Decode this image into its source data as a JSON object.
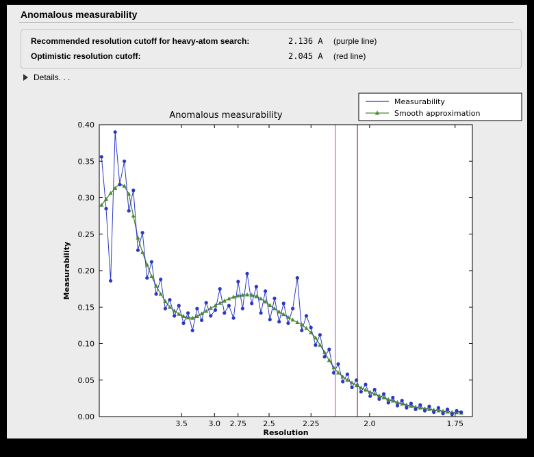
{
  "header": {
    "title": "Anomalous measurability"
  },
  "info": {
    "rows": [
      {
        "label": "Recommended resolution cutoff for heavy-atom search:",
        "value": "2.136 A",
        "note": "(purple line)"
      },
      {
        "label": "Optimistic resolution cutoff:",
        "value": "2.045 A",
        "note": "(red line)"
      }
    ]
  },
  "details": {
    "label": "Details. . ."
  },
  "colors": {
    "panel_bg": "#ececec",
    "plot_bg": "#ffffff",
    "measurability_blue": "#2c38c5",
    "smooth_green": "#4d8a33",
    "purple_line": "#bf5fbf",
    "red_line": "#8c3a31"
  },
  "chart_data": {
    "type": "line",
    "title": "Anomalous measurability",
    "xlabel": "Resolution",
    "ylabel": "Measurability",
    "x_units": "1/d^2 (d in Angstrom), axis reversed in d",
    "x_range": [
      0.008,
      0.342
    ],
    "y_range": [
      0.0,
      0.4
    ],
    "grid": false,
    "legend_position": "top-right-outside",
    "x_ticks": [
      {
        "label": "3.5",
        "v": 0.08163
      },
      {
        "label": "3.0",
        "v": 0.11111
      },
      {
        "label": "2.75",
        "v": 0.13223
      },
      {
        "label": "2.5",
        "v": 0.16
      },
      {
        "label": "2.25",
        "v": 0.19753
      },
      {
        "label": "2.0",
        "v": 0.25
      },
      {
        "label": "1.75",
        "v": 0.32653
      }
    ],
    "y_ticks": [
      {
        "label": "0.00",
        "v": 0.0
      },
      {
        "label": "0.05",
        "v": 0.05
      },
      {
        "label": "0.10",
        "v": 0.1
      },
      {
        "label": "0.15",
        "v": 0.15
      },
      {
        "label": "0.20",
        "v": 0.2
      },
      {
        "label": "0.25",
        "v": 0.25
      },
      {
        "label": "0.30",
        "v": 0.3
      },
      {
        "label": "0.35",
        "v": 0.35
      },
      {
        "label": "0.40",
        "v": 0.4
      }
    ],
    "vlines": [
      {
        "name": "purple line",
        "resolution": "2.136 A",
        "x": 0.21919,
        "color": "#bf5fbf"
      },
      {
        "name": "red line",
        "resolution": "2.045 A",
        "x": 0.23912,
        "color": "#8c3a31"
      }
    ],
    "x": [
      0.01,
      0.0141,
      0.0182,
      0.0222,
      0.0263,
      0.0304,
      0.0345,
      0.0385,
      0.0426,
      0.0467,
      0.0508,
      0.0548,
      0.0589,
      0.063,
      0.0671,
      0.0711,
      0.0752,
      0.0793,
      0.0834,
      0.0874,
      0.0915,
      0.0956,
      0.0997,
      0.1037,
      0.1078,
      0.1119,
      0.116,
      0.12,
      0.1241,
      0.1282,
      0.1323,
      0.1363,
      0.1404,
      0.1445,
      0.1486,
      0.1527,
      0.1567,
      0.1608,
      0.1649,
      0.169,
      0.173,
      0.1771,
      0.1812,
      0.1853,
      0.1893,
      0.1934,
      0.1975,
      0.2016,
      0.2056,
      0.2097,
      0.2138,
      0.2179,
      0.2219,
      0.226,
      0.2301,
      0.2342,
      0.2382,
      0.2423,
      0.2464,
      0.2505,
      0.2545,
      0.2586,
      0.2627,
      0.2668,
      0.2708,
      0.2749,
      0.279,
      0.2831,
      0.2871,
      0.2912,
      0.2953,
      0.2994,
      0.3034,
      0.3075,
      0.3116,
      0.3157,
      0.3197,
      0.3238,
      0.3279,
      0.332
    ],
    "series": [
      {
        "name": "Measurability",
        "color": "#2c38c5",
        "marker": "circle",
        "values": [
          0.356,
          0.285,
          0.186,
          0.39,
          0.318,
          0.35,
          0.282,
          0.31,
          0.228,
          0.252,
          0.19,
          0.212,
          0.168,
          0.188,
          0.148,
          0.16,
          0.138,
          0.152,
          0.128,
          0.142,
          0.118,
          0.148,
          0.132,
          0.156,
          0.138,
          0.146,
          0.175,
          0.142,
          0.152,
          0.135,
          0.185,
          0.148,
          0.196,
          0.155,
          0.178,
          0.142,
          0.172,
          0.133,
          0.162,
          0.13,
          0.155,
          0.128,
          0.148,
          0.19,
          0.118,
          0.138,
          0.122,
          0.098,
          0.112,
          0.082,
          0.092,
          0.06,
          0.072,
          0.048,
          0.058,
          0.04,
          0.05,
          0.034,
          0.044,
          0.028,
          0.037,
          0.024,
          0.031,
          0.019,
          0.026,
          0.015,
          0.022,
          0.012,
          0.018,
          0.01,
          0.016,
          0.008,
          0.014,
          0.006,
          0.012,
          0.004,
          0.01,
          0.003,
          0.008,
          0.006
        ]
      },
      {
        "name": "Smooth approximation",
        "color": "#4d8a33",
        "marker": "triangle",
        "values": [
          0.29,
          0.298,
          0.306,
          0.313,
          0.319,
          0.316,
          0.305,
          0.275,
          0.245,
          0.225,
          0.208,
          0.192,
          0.179,
          0.168,
          0.158,
          0.15,
          0.145,
          0.1405,
          0.1375,
          0.1355,
          0.135,
          0.1375,
          0.141,
          0.1445,
          0.1485,
          0.152,
          0.1555,
          0.1585,
          0.1615,
          0.164,
          0.1655,
          0.1665,
          0.167,
          0.1665,
          0.1645,
          0.1615,
          0.1575,
          0.1525,
          0.148,
          0.1435,
          0.14,
          0.136,
          0.1325,
          0.129,
          0.126,
          0.121,
          0.115,
          0.108,
          0.098,
          0.088,
          0.077,
          0.067,
          0.06,
          0.0545,
          0.05,
          0.0465,
          0.0425,
          0.0395,
          0.0365,
          0.0335,
          0.031,
          0.0285,
          0.026,
          0.0235,
          0.0215,
          0.0195,
          0.0175,
          0.016,
          0.0145,
          0.013,
          0.012,
          0.011,
          0.01,
          0.009,
          0.008,
          0.0075,
          0.0065,
          0.006,
          0.0055,
          0.005
        ]
      }
    ],
    "legend": [
      {
        "label": "Measurability",
        "color": "#2c38c5",
        "marker": "none"
      },
      {
        "label": "Smooth approximation",
        "color": "#4d8a33",
        "marker": "triangle"
      }
    ]
  }
}
